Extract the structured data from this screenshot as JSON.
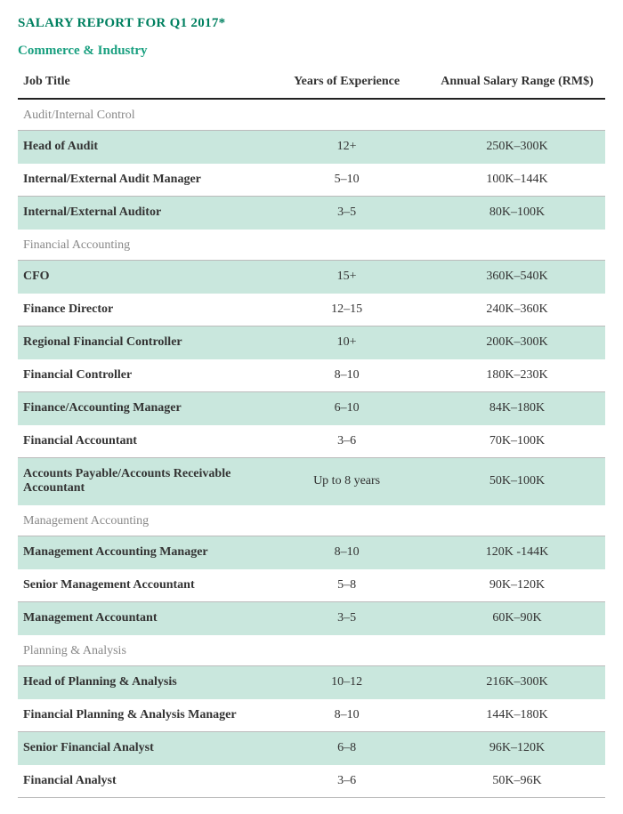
{
  "title": "SALARY REPORT FOR Q1 2017*",
  "subtitle": "Commerce & Industry",
  "colors": {
    "title": "#008060",
    "subtitle": "#1aa080",
    "shaded_row": "#c9e7dd",
    "section_text": "#888888",
    "body_text": "#333333",
    "header_rule": "#222222",
    "row_rule": "#bbbbbb",
    "background": "#ffffff"
  },
  "fonts": {
    "family": "Georgia, serif",
    "title_size_pt": 15,
    "subtitle_size_pt": 15,
    "header_size_pt": 14,
    "cell_size_pt": 14
  },
  "columns": {
    "job": "Job Title",
    "exp": "Years of Experience",
    "sal": "Annual Salary Range (RM$)",
    "widths_pct": [
      42,
      28,
      30
    ]
  },
  "sections": [
    {
      "name": "Audit/Internal Control",
      "rows": [
        {
          "job": "Head of Audit",
          "exp": "12+",
          "sal": "250K–300K",
          "shaded": true
        },
        {
          "job": "Internal/External Audit Manager",
          "exp": "5–10",
          "sal": "100K–144K",
          "shaded": false
        },
        {
          "job": "Internal/External Auditor",
          "exp": "3–5",
          "sal": "80K–100K",
          "shaded": true
        }
      ]
    },
    {
      "name": "Financial Accounting",
      "rows": [
        {
          "job": "CFO",
          "exp": "15+",
          "sal": "360K–540K",
          "shaded": true
        },
        {
          "job": "Finance Director",
          "exp": "12–15",
          "sal": "240K–360K",
          "shaded": false
        },
        {
          "job": "Regional Financial Controller",
          "exp": "10+",
          "sal": "200K–300K",
          "shaded": true
        },
        {
          "job": "Financial Controller",
          "exp": "8–10",
          "sal": "180K–230K",
          "shaded": false
        },
        {
          "job": "Finance/Accounting Manager",
          "exp": "6–10",
          "sal": "84K–180K",
          "shaded": true
        },
        {
          "job": "Financial Accountant",
          "exp": "3–6",
          "sal": "70K–100K",
          "shaded": false
        },
        {
          "job": "Accounts Payable/Accounts Receivable Accountant",
          "exp": "Up to 8 years",
          "sal": "50K–100K",
          "shaded": true
        }
      ]
    },
    {
      "name": "Management Accounting",
      "rows": [
        {
          "job": "Management Accounting Manager",
          "exp": "8–10",
          "sal": "120K -144K",
          "shaded": true
        },
        {
          "job": "Senior Management Accountant",
          "exp": "5–8",
          "sal": "90K–120K",
          "shaded": false
        },
        {
          "job": "Management Accountant",
          "exp": "3–5",
          "sal": "60K–90K",
          "shaded": true
        }
      ]
    },
    {
      "name": "Planning & Analysis",
      "rows": [
        {
          "job": "Head of Planning & Analysis",
          "exp": "10–12",
          "sal": "216K–300K",
          "shaded": true
        },
        {
          "job": "Financial Planning & Analysis Manager",
          "exp": "8–10",
          "sal": "144K–180K",
          "shaded": false
        },
        {
          "job": "Senior Financial Analyst",
          "exp": "6–8",
          "sal": "96K–120K",
          "shaded": true
        },
        {
          "job": "Financial Analyst",
          "exp": "3–6",
          "sal": "50K–96K",
          "shaded": false
        }
      ]
    }
  ]
}
